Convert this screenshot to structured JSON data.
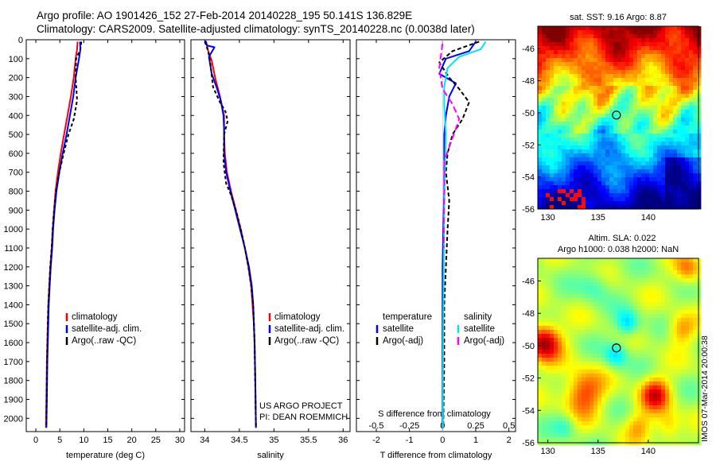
{
  "title": {
    "line1": "Argo profile: AO 1901426_152 27-Feb-2014 20140228_195 50.141S 136.829E",
    "line2": "Climatology: CARS2009. Satellite-adjusted climatology: synTS_20140228.nc (0.0038d later)"
  },
  "credits": {
    "line1": "US ARGO PROJECT",
    "line2": "PI: DEAN ROEMMICH"
  },
  "side_label": "IMOS 07-Mar-2014 20:00:38",
  "colors": {
    "climatology": "#ff0000",
    "satellite": "#0000ff",
    "argo": "#000000",
    "sat_salinity": "#00e5ee",
    "argo_salinity": "#ff00ff"
  },
  "chart_data": [
    {
      "type": "line",
      "xlabel": "temperature (deg C)",
      "ylabel": "",
      "xlim": [
        -2,
        31
      ],
      "ylim": [
        2070,
        0
      ],
      "xticks": [
        0,
        5,
        10,
        15,
        20,
        25,
        30
      ],
      "yticks": [
        0,
        100,
        200,
        300,
        400,
        500,
        600,
        700,
        800,
        900,
        1000,
        1100,
        1200,
        1300,
        1400,
        1500,
        1600,
        1700,
        1800,
        1900,
        2000
      ],
      "legend": {
        "position": "lower-middle",
        "items": [
          "climatology",
          "satellite-adj. clim.",
          "Argo(..raw -QC)"
        ]
      },
      "series": [
        {
          "name": "climatology",
          "color": "#ff0000",
          "dash": "",
          "x": [
            8.7,
            8.6,
            8.3,
            7.9,
            7.3,
            6.6,
            5.9,
            5.2,
            4.6,
            4.1,
            3.8,
            3.5,
            3.3,
            3.0,
            2.8,
            2.6,
            2.5,
            2.4,
            2.3,
            2.2,
            2.1
          ],
          "y": [
            10,
            50,
            100,
            200,
            300,
            400,
            500,
            600,
            700,
            800,
            900,
            1000,
            1100,
            1200,
            1300,
            1400,
            1500,
            1600,
            1700,
            1900,
            2050
          ]
        },
        {
          "name": "satellite-adj. clim.",
          "color": "#0000ff",
          "dash": "",
          "x": [
            9.2,
            9.3,
            9.0,
            8.3,
            7.8,
            7.1,
            6.4,
            5.6,
            4.9,
            4.3,
            3.9,
            3.6,
            3.4,
            3.1,
            2.9,
            2.7,
            2.6,
            2.5,
            2.4,
            2.3,
            2.2
          ],
          "y": [
            10,
            50,
            100,
            200,
            300,
            400,
            500,
            600,
            700,
            800,
            900,
            1000,
            1100,
            1200,
            1300,
            1400,
            1500,
            1600,
            1700,
            1900,
            2050
          ]
        },
        {
          "name": "Argo(..raw -QC)",
          "color": "#000000",
          "dash": "4,3",
          "x": [
            9.5,
            9.3,
            8.4,
            8.3,
            8.6,
            7.9,
            6.8,
            5.8,
            4.9,
            4.2,
            3.8,
            3.5,
            3.3,
            3.0,
            2.8,
            2.6,
            2.5,
            2.4,
            2.3,
            2.2
          ],
          "y": [
            10,
            50,
            100,
            200,
            320,
            420,
            500,
            600,
            700,
            800,
            900,
            1000,
            1100,
            1200,
            1300,
            1400,
            1500,
            1600,
            1800,
            2040
          ]
        }
      ]
    },
    {
      "type": "line",
      "xlabel": "salinity",
      "ylabel": "",
      "xlim": [
        33.8,
        36.1
      ],
      "ylim": [
        2070,
        0
      ],
      "xticks": [
        34,
        34.5,
        35,
        35.5,
        36
      ],
      "legend": {
        "position": "lower-right",
        "items": [
          "climatology",
          "satellite-adj. clim.",
          "Argo(..raw -QC)"
        ]
      },
      "series": [
        {
          "name": "climatology",
          "color": "#ff0000",
          "dash": "",
          "x": [
            34.02,
            34.05,
            34.1,
            34.15,
            34.22,
            34.28,
            34.28,
            34.29,
            34.32,
            34.38,
            34.45,
            34.52,
            34.58,
            34.63,
            34.67,
            34.69,
            34.71,
            34.72,
            34.73,
            34.74
          ],
          "y": [
            10,
            60,
            110,
            200,
            300,
            400,
            500,
            600,
            700,
            800,
            900,
            1000,
            1100,
            1200,
            1300,
            1400,
            1500,
            1600,
            1800,
            2050
          ]
        },
        {
          "name": "satellite-adj. clim.",
          "color": "#0000ff",
          "dash": "",
          "x": [
            34.01,
            34.03,
            34.14,
            34.06,
            34.1,
            34.17,
            34.23,
            34.27,
            34.28,
            34.28,
            34.31,
            34.37,
            34.44,
            34.51,
            34.58,
            34.64,
            34.68,
            34.7,
            34.72,
            34.73,
            34.74
          ],
          "y": [
            5,
            30,
            40,
            90,
            180,
            250,
            320,
            400,
            480,
            600,
            700,
            800,
            900,
            1000,
            1100,
            1200,
            1300,
            1400,
            1600,
            1800,
            2050
          ]
        },
        {
          "name": "Argo(..raw -QC)",
          "color": "#000000",
          "dash": "4,3",
          "x": [
            34.0,
            34.05,
            34.08,
            34.12,
            34.22,
            34.3,
            34.33,
            34.28,
            34.27,
            34.31,
            34.38,
            34.45,
            34.52,
            34.58,
            34.63,
            34.67,
            34.7,
            34.72,
            34.74
          ],
          "y": [
            10,
            60,
            120,
            250,
            330,
            380,
            430,
            500,
            650,
            760,
            820,
            900,
            1000,
            1100,
            1200,
            1300,
            1400,
            1600,
            2040
          ]
        }
      ]
    },
    {
      "type": "line",
      "xlabel": "T difference from climatology",
      "xlabel_top": "S difference from climatology",
      "ylabel": "",
      "xlim": [
        -2.6,
        2.2
      ],
      "ylim": [
        2070,
        0
      ],
      "xticks_T": [
        -2,
        -1,
        0,
        1,
        2
      ],
      "xticks_S": [
        "-0.5",
        "-0.25",
        "0",
        "0.25",
        "0.5"
      ],
      "legend": {
        "position": "lower-middle",
        "temperature_header": "temperature",
        "salinity_header": "salinity",
        "items": [
          "satellite",
          "Argo(-adj)",
          "satellite",
          "Argo(-adj)"
        ]
      },
      "series": [
        {
          "name": "T satellite",
          "color": "#0000ff",
          "dash": "",
          "x": [
            1.0,
            0.8,
            0.1,
            -0.1,
            0.4,
            0.2,
            0.1,
            0.05,
            0.05,
            0.05,
            0.02,
            0,
            0,
            0,
            0
          ],
          "y": [
            10,
            60,
            100,
            180,
            230,
            300,
            400,
            500,
            600,
            800,
            1000,
            1200,
            1500,
            1800,
            2050
          ]
        },
        {
          "name": "T Argo(-adj)",
          "color": "#000000",
          "dash": "5,3",
          "x": [
            1.1,
            0.3,
            -0.1,
            0.2,
            0.5,
            0.8,
            0.6,
            0.3,
            0.15,
            0.1,
            0.2,
            0.15,
            0.1,
            0.05,
            0.05,
            0.02
          ],
          "y": [
            10,
            60,
            120,
            200,
            260,
            330,
            420,
            500,
            600,
            700,
            850,
            1000,
            1200,
            1400,
            1700,
            2040
          ]
        },
        {
          "name": "S satellite",
          "color": "#00e5ee",
          "dash": "",
          "x": [
            1.3,
            1.15,
            0.5,
            0.15,
            0.05,
            0.05,
            0.1,
            0.07,
            0.05,
            0.04,
            0.03,
            0.02,
            0.01,
            0.01
          ],
          "y": [
            10,
            50,
            90,
            150,
            250,
            350,
            500,
            700,
            900,
            1100,
            1300,
            1500,
            1800,
            2050
          ]
        },
        {
          "name": "S Argo(-adj)",
          "color": "#ff00ff",
          "dash": "8,4",
          "x": [
            0.0,
            -0.05,
            -0.1,
            0.0,
            0.3,
            0.5,
            0.3,
            0.05,
            0.05,
            0.04,
            0.03
          ],
          "y": [
            20,
            80,
            150,
            260,
            340,
            420,
            520,
            640,
            800,
            950,
            1100
          ]
        }
      ]
    },
    {
      "type": "heatmap",
      "title": "sat. SST: 9.16 Argo: 8.87",
      "xlim": [
        129,
        145
      ],
      "ylim": [
        -56,
        -44.6
      ],
      "xticks": [
        130,
        135,
        140
      ],
      "yticks": [
        -46,
        -48,
        -50,
        -52,
        -54,
        -56
      ],
      "marker": {
        "lon": 136.829,
        "lat": -50.141
      },
      "colormap": "jet"
    },
    {
      "type": "heatmap",
      "title": "Altim. SLA: 0.022",
      "subtitle": "Argo h1000: 0.038 h2000: NaN",
      "xlim": [
        129,
        145
      ],
      "ylim": [
        -56,
        -44.6
      ],
      "xticks": [
        130,
        135,
        140
      ],
      "yticks": [
        -46,
        -48,
        -50,
        -52,
        -54,
        -56
      ],
      "marker": {
        "lon": 136.829,
        "lat": -50.141
      },
      "colormap": "jet"
    }
  ]
}
